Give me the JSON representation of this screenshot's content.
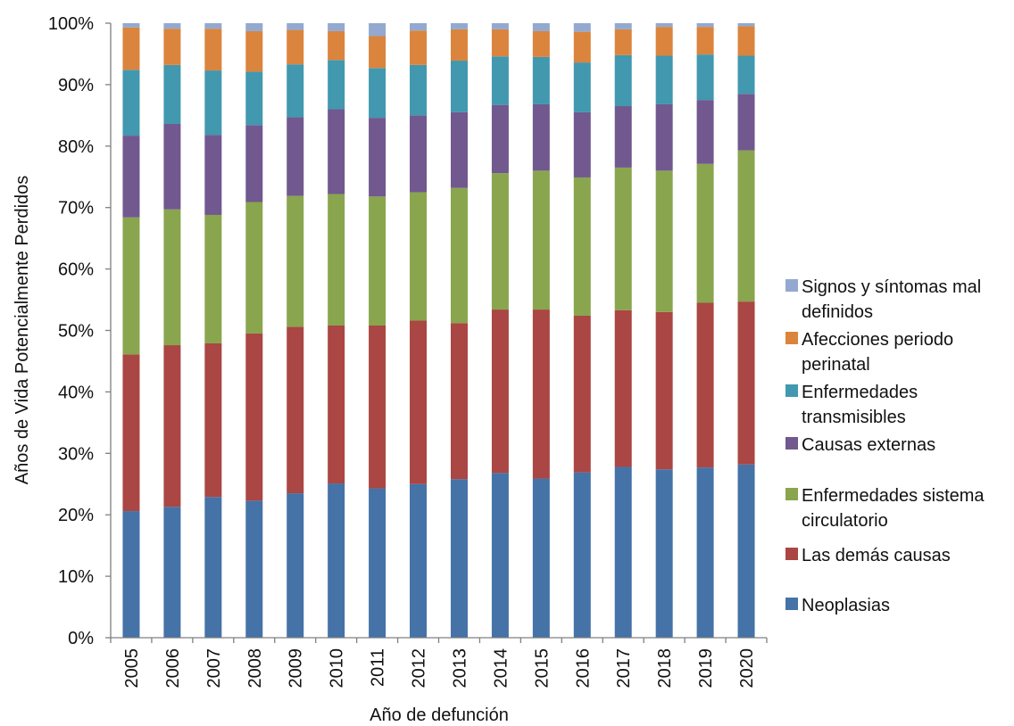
{
  "chart_data": {
    "type": "bar",
    "stacked": true,
    "percent": true,
    "title": "",
    "xlabel": "Año de defunción",
    "ylabel": "Años de Vida Potencialmente Perdidos",
    "ylim": [
      0,
      100
    ],
    "yticks": [
      "0%",
      "10%",
      "20%",
      "30%",
      "40%",
      "50%",
      "60%",
      "70%",
      "80%",
      "90%",
      "100%"
    ],
    "grid": false,
    "legend_position": "right",
    "categories": [
      "2005",
      "2006",
      "2007",
      "2008",
      "2009",
      "2010",
      "2011",
      "2012",
      "2013",
      "2014",
      "2015",
      "2016",
      "2017",
      "2018",
      "2019",
      "2020"
    ],
    "series": [
      {
        "name": "Neoplasias",
        "color": "#4572A7",
        "values": [
          20.6,
          21.3,
          22.9,
          22.3,
          23.5,
          25.1,
          24.3,
          25.0,
          25.8,
          26.8,
          25.9,
          26.9,
          27.8,
          27.4,
          27.7,
          28.2
        ]
      },
      {
        "name": "Las demás causas",
        "color": "#AA4643",
        "values": [
          25.5,
          26.3,
          25.0,
          27.2,
          27.1,
          25.7,
          26.5,
          26.6,
          25.4,
          26.6,
          27.5,
          25.5,
          25.5,
          25.6,
          26.8,
          26.5
        ]
      },
      {
        "name": "Enfermedades sistema circulatorio",
        "color": "#89A54E",
        "values": [
          22.3,
          22.1,
          20.9,
          21.4,
          21.3,
          21.4,
          21.0,
          20.9,
          22.0,
          22.2,
          22.6,
          22.5,
          23.2,
          23.0,
          22.6,
          24.6
        ]
      },
      {
        "name": "Causas externas",
        "color": "#71588F",
        "values": [
          13.3,
          13.9,
          13.0,
          12.5,
          12.8,
          13.8,
          12.8,
          12.5,
          12.3,
          11.1,
          10.8,
          10.6,
          10.0,
          10.8,
          10.4,
          9.2
        ]
      },
      {
        "name": "Enfermedades transmisibles",
        "color": "#4198AF",
        "values": [
          10.7,
          9.6,
          10.5,
          8.7,
          8.6,
          8.0,
          8.1,
          8.2,
          8.4,
          7.9,
          7.7,
          8.1,
          8.3,
          7.9,
          7.4,
          6.2
        ]
      },
      {
        "name": "Afecciones periodo perinatal",
        "color": "#DB843D",
        "values": [
          6.9,
          5.9,
          6.8,
          6.6,
          5.6,
          4.7,
          5.2,
          5.6,
          5.1,
          4.4,
          4.2,
          5.0,
          4.2,
          4.7,
          4.5,
          4.8
        ]
      },
      {
        "name": "Signos y síntomas mal definidos",
        "color": "#93A9CF",
        "values": [
          0.7,
          0.9,
          0.9,
          1.3,
          1.1,
          1.3,
          2.1,
          1.2,
          1.0,
          1.0,
          1.3,
          1.4,
          1.0,
          0.6,
          0.6,
          0.5
        ]
      }
    ],
    "legend": [
      {
        "series": 6,
        "lines": [
          "Signos y síntomas mal",
          "definidos"
        ]
      },
      {
        "series": 5,
        "lines": [
          "Afecciones periodo",
          "perinatal"
        ]
      },
      {
        "series": 4,
        "lines": [
          "Enfermedades",
          "transmisibles"
        ]
      },
      {
        "series": 3,
        "lines": [
          "Causas externas"
        ]
      },
      {
        "series": 2,
        "lines": [
          "Enfermedades sistema",
          "circulatorio"
        ]
      },
      {
        "series": 1,
        "lines": [
          "Las demás causas"
        ]
      },
      {
        "series": 0,
        "lines": [
          "Neoplasias"
        ]
      }
    ]
  }
}
